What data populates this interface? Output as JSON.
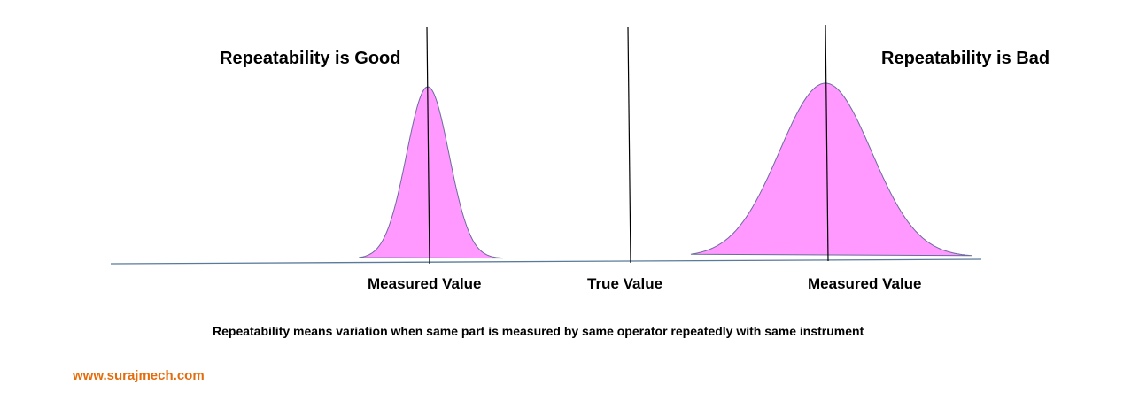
{
  "titles": {
    "good": "Repeatability is Good",
    "bad": "Repeatability is Bad"
  },
  "labels": {
    "measured_left": "Measured Value",
    "true_value": "True Value",
    "measured_right": "Measured Value"
  },
  "caption": "Repeatability means variation when same part is measured by same operator repeatedly with same instrument",
  "website": "www.surajmech.com",
  "colors": {
    "curve_fill": "#ff99ff",
    "curve_stroke": "#6b6b9e",
    "axis": "#5a7a9a",
    "website": "#e46c0a"
  }
}
